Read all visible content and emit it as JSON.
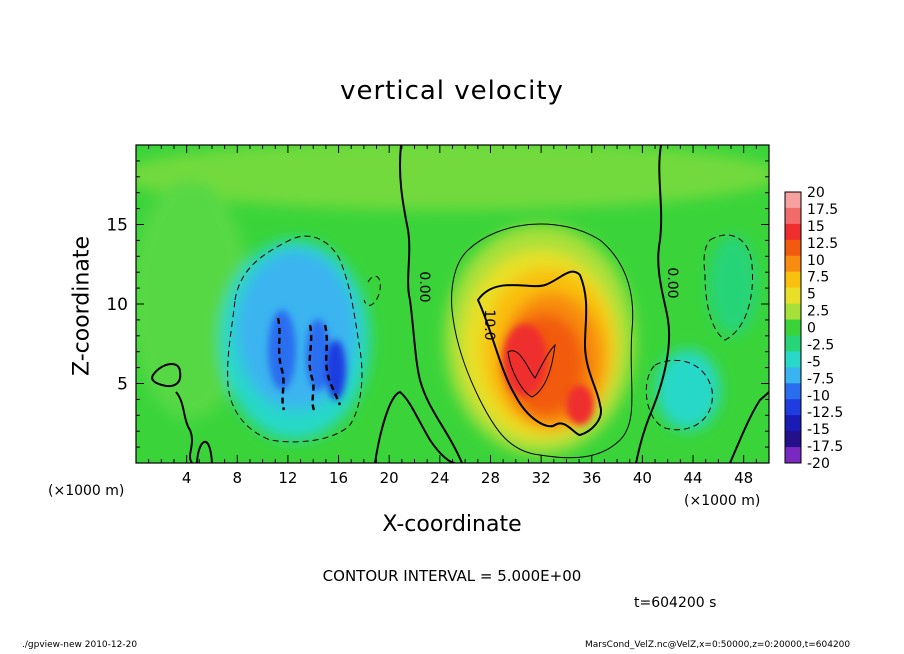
{
  "chart_data": {
    "type": "heatmap",
    "title": "vertical velocity",
    "xlabel": "X-coordinate",
    "ylabel": "Z-coordinate",
    "x_unit": "(×1000 m)",
    "xlim": [
      0,
      50
    ],
    "ylim": [
      0,
      20
    ],
    "x_ticks": [
      "4",
      "8",
      "12",
      "16",
      "20",
      "24",
      "28",
      "32",
      "36",
      "40",
      "44",
      "48"
    ],
    "y_ticks": [
      "5",
      "10",
      "15"
    ],
    "colorbar": {
      "labels": [
        "20",
        "17.5",
        "15",
        "12.5",
        "10",
        "7.5",
        "5",
        "2.5",
        "0",
        "-2.5",
        "-5",
        "-7.5",
        "-10",
        "-12.5",
        "-15",
        "-17.5",
        "-20"
      ],
      "colors": [
        "#f7a0a0",
        "#f26b6b",
        "#ef2e2e",
        "#f25a10",
        "#f88c10",
        "#f9c010",
        "#e8e028",
        "#a8e03a",
        "#3ad43a",
        "#28d478",
        "#28d8c8",
        "#3ab4f0",
        "#2a6ef0",
        "#1f3ce0",
        "#1a1ab4",
        "#25108c",
        "#7a28c0"
      ]
    },
    "contour_labels": [
      "0.00",
      "10.0",
      "0.00"
    ],
    "features": [
      {
        "kind": "updraft",
        "center_x": 31.5,
        "center_z": 7.5,
        "peak": 15
      },
      {
        "kind": "downdraft",
        "center_x": 13,
        "center_z": 8,
        "peak": -12.5
      },
      {
        "kind": "downdraft",
        "center_x": 43.5,
        "center_z": 5,
        "peak": -7.5
      },
      {
        "kind": "downdraft",
        "center_x": 45,
        "center_z": 11,
        "peak": -5
      }
    ]
  },
  "contour_interval": "CONTOUR INTERVAL = 5.000E+00",
  "time_label": "t=604200 s",
  "footer_left": "./gpview-new  2010-12-20",
  "footer_right": "MarsCond_VelZ.nc@VelZ,x=0:50000,z=0:20000,t=604200"
}
